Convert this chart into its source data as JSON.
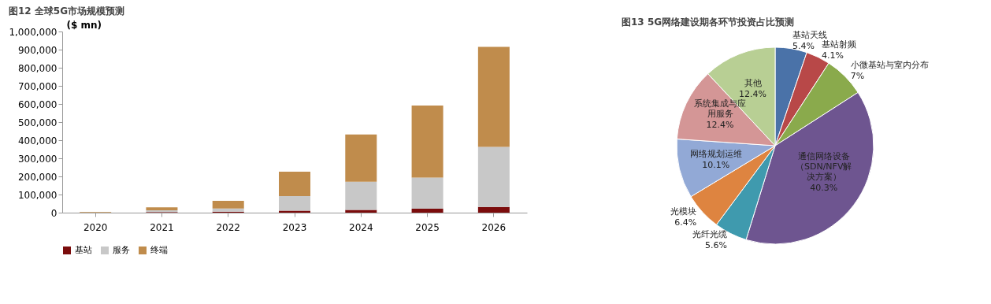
{
  "chart_data": [
    {
      "type": "bar",
      "title": "图12 全球5G市场规模预测",
      "ylabel": "($ mn)",
      "stacked": true,
      "categories": [
        "2020",
        "2021",
        "2022",
        "2023",
        "2024",
        "2025",
        "2026"
      ],
      "series": [
        {
          "name": "基站",
          "color": "#7b0c0c",
          "values": [
            null,
            3000,
            5000,
            11000,
            15000,
            22000,
            32000
          ]
        },
        {
          "name": "服务",
          "color": "#c8c8c8",
          "values": [
            null,
            10000,
            18000,
            80000,
            156000,
            172000,
            331000
          ]
        },
        {
          "name": "终端",
          "color": "#c08c4c",
          "values": [
            3000,
            16000,
            42000,
            135000,
            260000,
            397000,
            552000
          ]
        }
      ],
      "ylim": [
        0,
        1000000
      ],
      "yticks": [
        {
          "value": 0,
          "label": "0"
        },
        {
          "value": 100000,
          "label": "100,000"
        },
        {
          "value": 200000,
          "label": "200,000"
        },
        {
          "value": 300000,
          "label": "300,000"
        },
        {
          "value": 400000,
          "label": "400,000"
        },
        {
          "value": 500000,
          "label": "500,000"
        },
        {
          "value": 600000,
          "label": "600,000"
        },
        {
          "value": 700000,
          "label": "700,000"
        },
        {
          "value": 800000,
          "label": "800,000"
        },
        {
          "value": 900000,
          "label": "900,000"
        },
        {
          "value": 1000000,
          "label": "1,000,000"
        }
      ],
      "grid": false,
      "legend": "bottom"
    },
    {
      "type": "pie",
      "title": "图13 5G网络建设期各环节投资占比预测",
      "categories": [
        "基站天线",
        "基站射频",
        "小微基站与室内分布",
        "通信网络设备（SDN/NFV解决方案）",
        "光纤光缆",
        "光模块",
        "网络规划运维",
        "系统集成与应用服务",
        "其他"
      ],
      "values": [
        5.4,
        4.1,
        7,
        40.3,
        5.6,
        6.4,
        10.1,
        12.4,
        12.4
      ],
      "colors": [
        "#4a72a8",
        "#b84848",
        "#8aaa4c",
        "#6e5590",
        "#3f9aae",
        "#de8440",
        "#92a9d6",
        "#d49696",
        "#b8cf94"
      ],
      "value_labels": [
        "5.4%",
        "4.1%",
        "7%",
        "40.3%",
        "5.6%",
        "6.4%",
        "10.1%",
        "12.4%",
        "12.4%"
      ],
      "legend": false
    }
  ]
}
